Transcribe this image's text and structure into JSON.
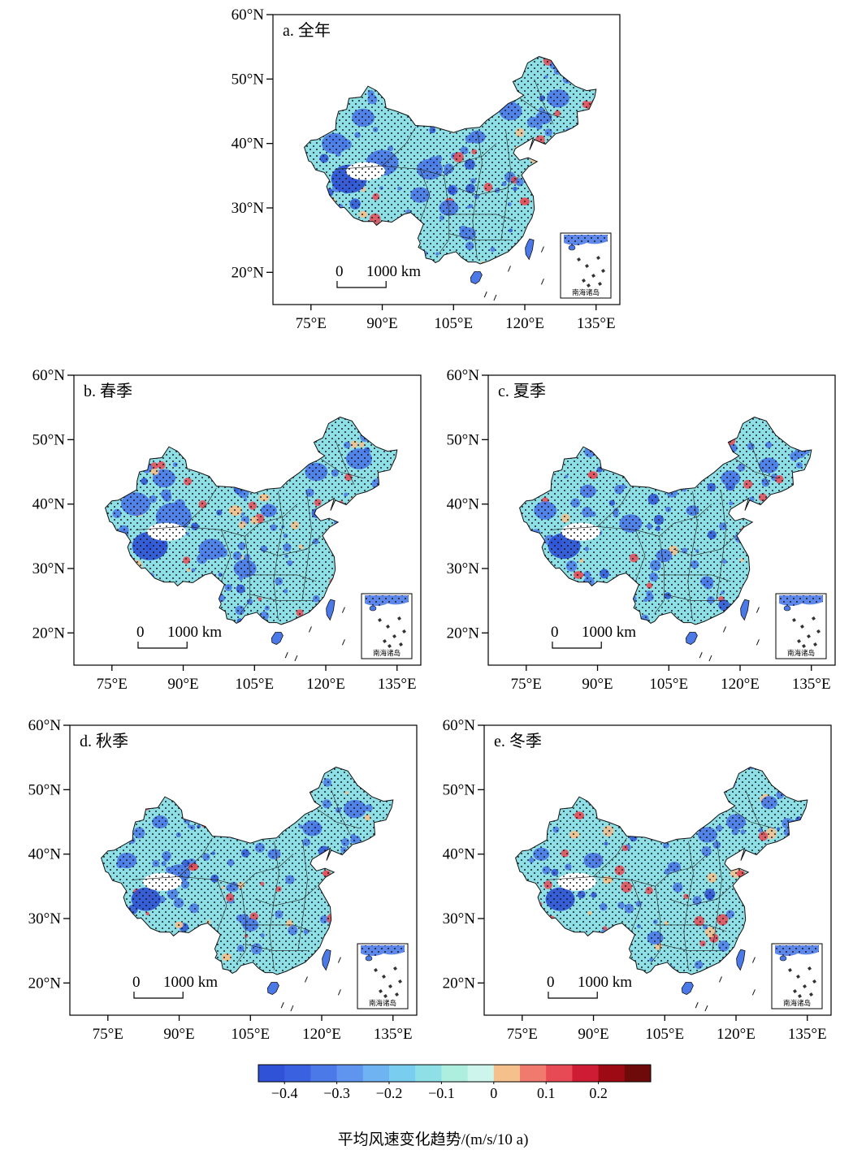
{
  "panels": [
    {
      "id": "a",
      "title": "a. 全年"
    },
    {
      "id": "b",
      "title": "b. 春季"
    },
    {
      "id": "c",
      "title": "c. 夏季"
    },
    {
      "id": "d",
      "title": "d. 秋季"
    },
    {
      "id": "e",
      "title": "e. 冬季"
    }
  ],
  "lat_ticks": [
    "20°N",
    "30°N",
    "40°N",
    "50°N",
    "60°N"
  ],
  "lon_ticks": [
    "75°E",
    "90°E",
    "105°E",
    "120°E",
    "135°E"
  ],
  "scale_bar": {
    "zero": "0",
    "distance": "1000 km"
  },
  "inset_label": "南海诸岛",
  "colorbar": {
    "colors": [
      "#2f52d6",
      "#3a62e0",
      "#4b7ae8",
      "#5f95ee",
      "#6fb3f2",
      "#79cdee",
      "#8fe0e6",
      "#aeeede",
      "#cdf5ec",
      "#f6c08c",
      "#f07a6e",
      "#e84a55",
      "#cf1c35",
      "#9e0a14",
      "#6e0a0a"
    ],
    "tick_labels": [
      "−0.4",
      "−0.3",
      "−0.2",
      "−0.1",
      "0",
      "0.1",
      "0.2"
    ],
    "title": "平均风速变化趋势/(m/s/10 a)"
  },
  "colors": {
    "base": "#8fe0e6",
    "blue": "#4b7ae8",
    "dark_blue": "#2f52d6",
    "orange": "#f6c08c",
    "red": "#e84a55"
  }
}
